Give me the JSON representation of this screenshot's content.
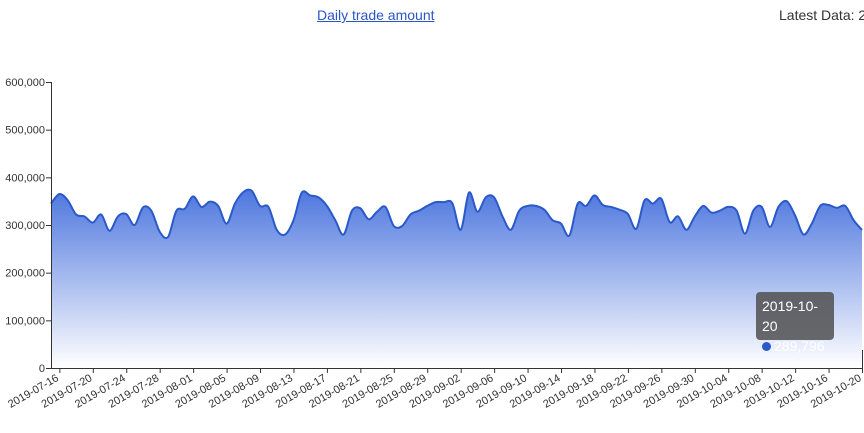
{
  "header": {
    "title_link": "Daily trade amount",
    "latest_data": "Latest Data: 2"
  },
  "tooltip": {
    "date": "2019-10-20",
    "value": "289,796"
  },
  "colors": {
    "line": "#2a59c9",
    "fill_top": "#4d76de",
    "fill_bottom": "#ffffff",
    "link": "#2a56c6"
  },
  "chart_data": {
    "type": "area",
    "title": "Daily trade amount",
    "xlabel": "",
    "ylabel": "",
    "ylim": [
      0,
      600000
    ],
    "yticks": [
      0,
      100000,
      200000,
      300000,
      400000,
      500000,
      600000
    ],
    "ytick_labels": [
      "0",
      "100,000",
      "200,000",
      "300,000",
      "400,000",
      "500,000",
      "600,000"
    ],
    "xtick_labels": [
      "2019-07-16",
      "2019-07-20",
      "2019-07-24",
      "2019-07-28",
      "2019-08-01",
      "2019-08-05",
      "2019-08-09",
      "2019-08-13",
      "2019-08-17",
      "2019-08-21",
      "2019-08-25",
      "2019-08-29",
      "2019-09-02",
      "2019-09-06",
      "2019-09-10",
      "2019-09-14",
      "2019-09-18",
      "2019-09-22",
      "2019-09-26",
      "2019-09-30",
      "2019-10-04",
      "2019-10-08",
      "2019-10-12",
      "2019-10-16",
      "2019-10-20"
    ],
    "grid": false,
    "x_start": "2019-07-15",
    "x_end": "2019-10-20",
    "series": [
      {
        "values": [
          345000,
          365000,
          352000,
          322000,
          318000,
          305000,
          322000,
          288000,
          318000,
          323000,
          300000,
          337000,
          330000,
          286000,
          275000,
          330000,
          334000,
          360000,
          338000,
          349000,
          340000,
          303000,
          345000,
          369000,
          372000,
          340000,
          338000,
          290000,
          280000,
          310000,
          368000,
          362000,
          358000,
          340000,
          310000,
          280000,
          330000,
          335000,
          312000,
          328000,
          338000,
          298000,
          298000,
          322000,
          330000,
          340000,
          348000,
          348000,
          346000,
          290000,
          368000,
          328000,
          358000,
          358000,
          318000,
          290000,
          330000,
          340000,
          340000,
          332000,
          310000,
          303000,
          278000,
          345000,
          340000,
          362000,
          342000,
          338000,
          332000,
          323000,
          292000,
          352000,
          345000,
          355000,
          306000,
          318000,
          290000,
          318000,
          340000,
          326000,
          330000,
          338000,
          330000,
          282000,
          330000,
          338000,
          296000,
          338000,
          350000,
          320000,
          280000,
          303000,
          340000,
          342000,
          336000,
          340000,
          310000,
          289796
        ]
      }
    ]
  }
}
